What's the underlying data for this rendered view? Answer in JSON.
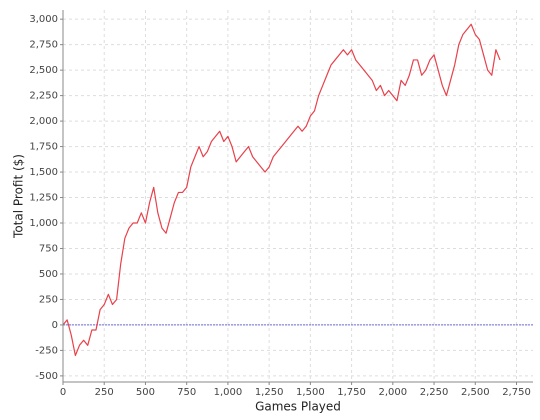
{
  "chart_data": {
    "type": "line",
    "x_label": "Games Played",
    "y_label": "Total Profit ($)",
    "x": [
      0,
      25,
      50,
      75,
      100,
      125,
      150,
      175,
      200,
      225,
      250,
      275,
      300,
      325,
      350,
      375,
      400,
      425,
      450,
      475,
      500,
      525,
      550,
      575,
      600,
      625,
      650,
      675,
      700,
      725,
      750,
      775,
      800,
      825,
      850,
      875,
      900,
      925,
      950,
      975,
      1000,
      1025,
      1050,
      1075,
      1100,
      1125,
      1150,
      1175,
      1200,
      1225,
      1250,
      1275,
      1300,
      1325,
      1350,
      1375,
      1400,
      1425,
      1450,
      1475,
      1500,
      1525,
      1550,
      1575,
      1600,
      1625,
      1650,
      1675,
      1700,
      1725,
      1750,
      1775,
      1800,
      1825,
      1850,
      1875,
      1900,
      1925,
      1950,
      1975,
      2000,
      2025,
      2050,
      2075,
      2100,
      2125,
      2150,
      2175,
      2200,
      2225,
      2250,
      2275,
      2300,
      2325,
      2350,
      2375,
      2400,
      2425,
      2450,
      2475,
      2500,
      2525,
      2550,
      2575,
      2600,
      2625,
      2650
    ],
    "values": [
      0,
      50,
      -100,
      -300,
      -200,
      -150,
      -200,
      -50,
      -50,
      150,
      200,
      300,
      200,
      250,
      600,
      850,
      950,
      1000,
      1000,
      1100,
      1000,
      1200,
      1350,
      1100,
      950,
      900,
      1050,
      1200,
      1300,
      1300,
      1350,
      1550,
      1650,
      1750,
      1650,
      1700,
      1800,
      1850,
      1900,
      1800,
      1850,
      1750,
      1600,
      1650,
      1700,
      1750,
      1650,
      1600,
      1550,
      1500,
      1550,
      1650,
      1700,
      1750,
      1800,
      1850,
      1900,
      1950,
      1900,
      1950,
      2050,
      2100,
      2250,
      2350,
      2450,
      2550,
      2600,
      2650,
      2700,
      2650,
      2700,
      2600,
      2550,
      2500,
      2450,
      2400,
      2300,
      2350,
      2250,
      2300,
      2250,
      2200,
      2400,
      2350,
      2450,
      2600,
      2600,
      2450,
      2500,
      2600,
      2650,
      2500,
      2350,
      2250,
      2400,
      2550,
      2750,
      2850,
      2900,
      2950,
      2850,
      2800,
      2650,
      2500,
      2450,
      2700,
      2600
    ],
    "color": "#e8414b",
    "reference_line": 0,
    "reference_color": "#6b6bd6",
    "xlim": [
      0,
      2850
    ],
    "ylim": [
      -560,
      3090
    ],
    "xticks": [
      0,
      250,
      500,
      750,
      {
        "value": 1000,
        "label": "1,000"
      },
      {
        "value": 1250,
        "label": "1,250"
      },
      {
        "value": 1500,
        "label": "1,500"
      },
      {
        "value": 1750,
        "label": "1,750"
      },
      {
        "value": 2000,
        "label": "2,000"
      },
      {
        "value": 2250,
        "label": "2,250"
      },
      {
        "value": 2500,
        "label": "2,500"
      },
      {
        "value": 2750,
        "label": "2,750"
      }
    ],
    "yticks": [
      -500,
      -250,
      0,
      250,
      500,
      750,
      {
        "value": 1000,
        "label": "1,000"
      },
      {
        "value": 1250,
        "label": "1,250"
      },
      {
        "value": 1500,
        "label": "1,500"
      },
      {
        "value": 1750,
        "label": "1,750"
      },
      {
        "value": 2000,
        "label": "2,000"
      },
      {
        "value": 2250,
        "label": "2,250"
      },
      {
        "value": 2500,
        "label": "2,500"
      },
      {
        "value": 2750,
        "label": "2,750"
      },
      {
        "value": 3000,
        "label": "3,000"
      }
    ],
    "grid": true
  }
}
